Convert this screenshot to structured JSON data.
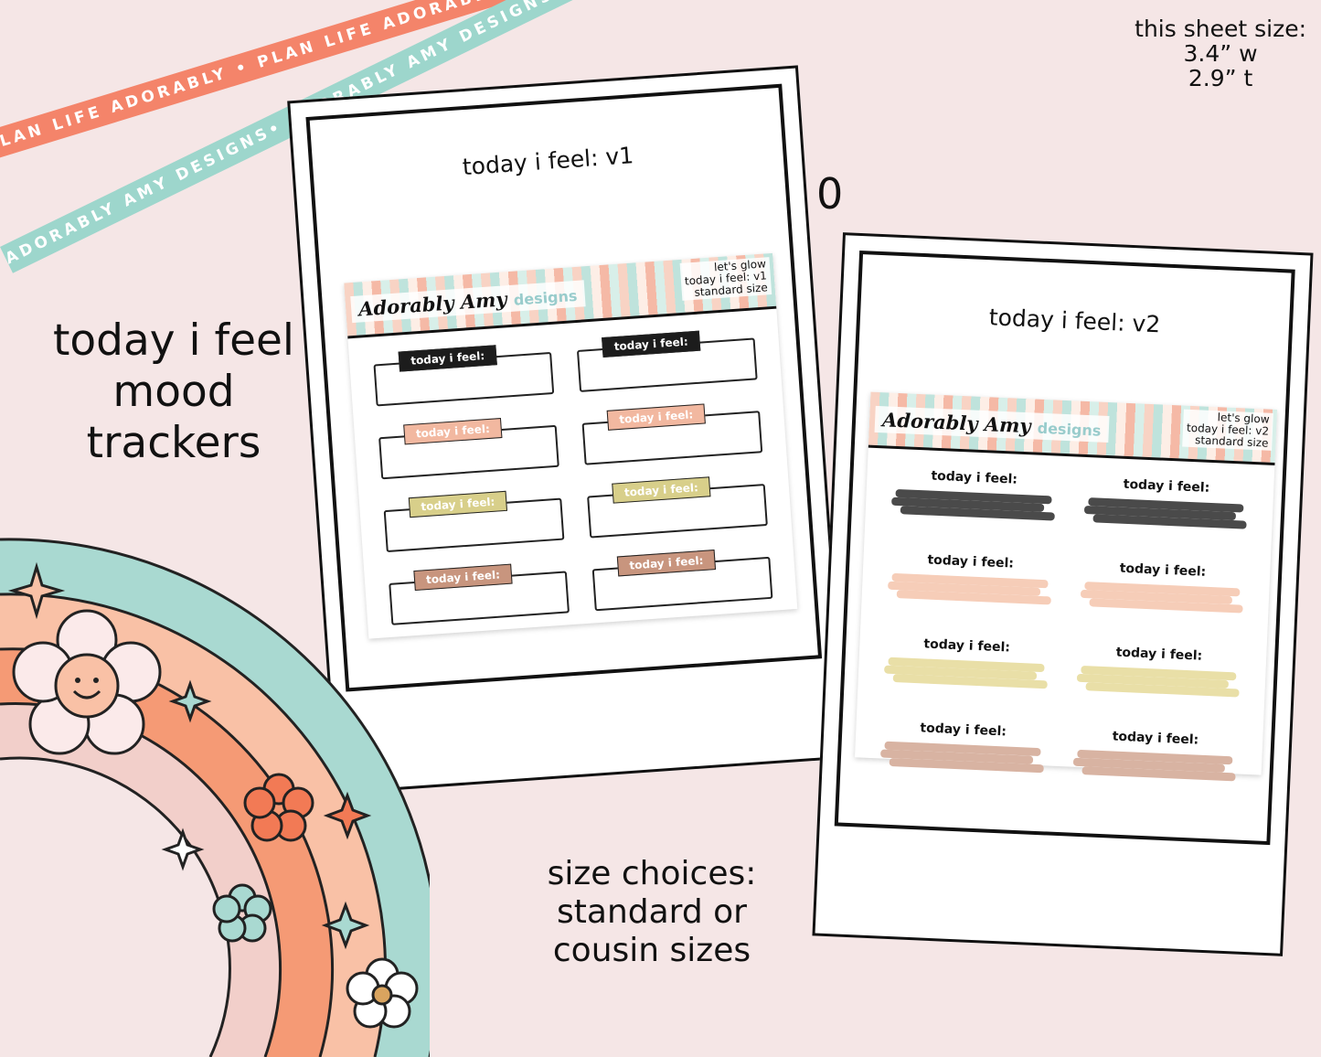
{
  "ribbons": {
    "orange_text": "PLAN LIFE ADORABLY • PLAN LIFE ADORABLY • PLAN LIFE ADORABLY •",
    "teal_text": "ADORABLY AMY DESIGNS• ADORABLY AMY DESIGNS• ADORABLY AMY DESIGNS•"
  },
  "sheet_size": {
    "line1": "this sheet size:",
    "line2": "3.4” w",
    "line3": "2.9” t"
  },
  "title": {
    "line1": "today i feel",
    "line2": "mood",
    "line3": "trackers"
  },
  "size_choices": {
    "line1": "size choices:",
    "line2": "standard or",
    "line3": "cousin sizes"
  },
  "zero_mark": "0",
  "sheet_v1": {
    "label": "today i feel: v1",
    "logo": "Adorably Amy",
    "logo_suffix": "designs",
    "meta_line1": "let's glow",
    "meta_line2": "today i feel: v1",
    "meta_line3": "standard size",
    "tag_text": "today i feel:",
    "tag_colors": [
      "#1c1c1c",
      "#1c1c1c",
      "#f2b8a0",
      "#f2b8a0",
      "#d8cf8a",
      "#d8cf8a",
      "#c8957e",
      "#c8957e"
    ]
  },
  "sheet_v2": {
    "label": "today i feel: v2",
    "logo": "Adorably Amy",
    "logo_suffix": "designs",
    "meta_line1": "let's glow",
    "meta_line2": "today i feel: v2",
    "meta_line3": "standard size",
    "swatch_text": "today i feel:",
    "swatch_colors": [
      "#4a4a4a",
      "#4a4a4a",
      "#f6cdb8",
      "#f6cdb8",
      "#e9dfa7",
      "#e9dfa7",
      "#d8b3a2",
      "#d8b3a2"
    ]
  },
  "colors": {
    "background": "#f5e6e6",
    "ribbon_orange": "#f4846a",
    "ribbon_teal": "#9dd6cc",
    "rainbow_teal": "#a9d9d1",
    "rainbow_peach": "#f9c1a6",
    "rainbow_orange": "#f59a75",
    "rainbow_pink": "#f2cfca"
  }
}
